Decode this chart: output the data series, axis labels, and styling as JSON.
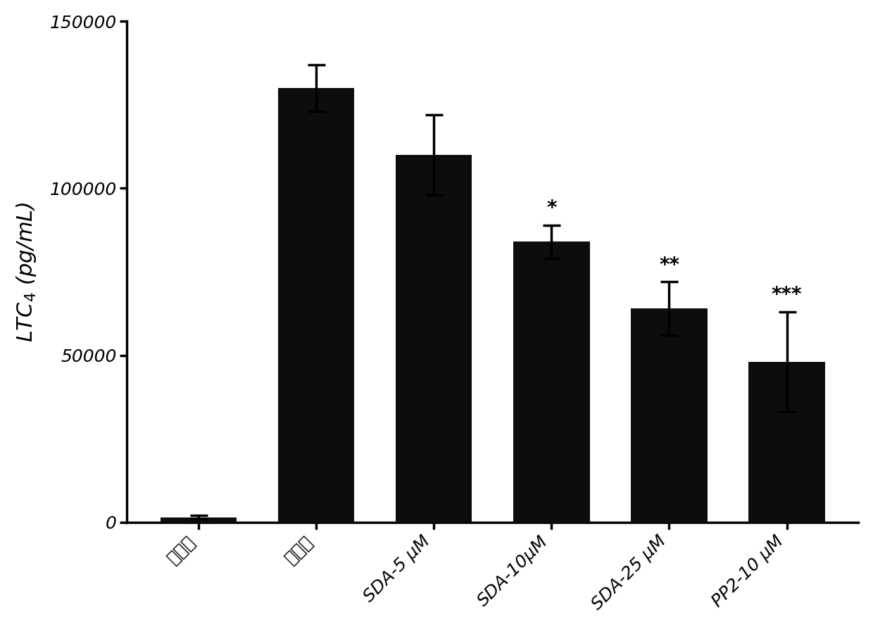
{
  "categories": [
    "空白组",
    "模型组",
    "SDA-5 μM",
    "SDA-10μM",
    "SDA-25 μM",
    "PP2-10 μM"
  ],
  "values": [
    1500,
    130000,
    110000,
    84000,
    64000,
    48000
  ],
  "errors": [
    500,
    7000,
    12000,
    5000,
    8000,
    15000
  ],
  "bar_color": "#0d0d0d",
  "significance": [
    "",
    "",
    "",
    "*",
    "**",
    "***"
  ],
  "ylabel": "LTC$_4$ (pg/mL)",
  "ylim": [
    0,
    150000
  ],
  "yticks": [
    0,
    50000,
    100000,
    150000
  ],
  "background_color": "#ffffff",
  "bar_width": 0.65,
  "sig_fontsize": 20,
  "ylabel_fontsize": 22,
  "tick_fontsize": 18,
  "spine_linewidth": 2.5
}
